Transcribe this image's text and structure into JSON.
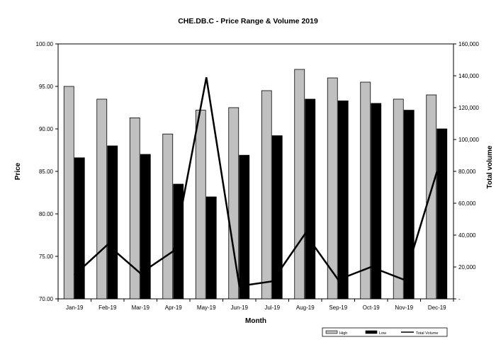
{
  "chart_data": {
    "type": "bar",
    "title": "CHE.DB.C - Price Range & Volume 2019",
    "xlabel": "Month",
    "ylabel": "Price",
    "y2label": "Total volume",
    "categories": [
      "Jan-19",
      "Feb-19",
      "Mar-19",
      "Apr-19",
      "May-19",
      "Jun-19",
      "Jul-19",
      "Aug-19",
      "Sep-19",
      "Oct-19",
      "Nov-19",
      "Dec-19"
    ],
    "ylim": [
      70,
      100
    ],
    "y_ticks": [
      "70.00",
      "75.00",
      "80.00",
      "85.00",
      "90.00",
      "95.00",
      "100.00"
    ],
    "y2lim": [
      0,
      160000
    ],
    "y2_ticks": [
      "-",
      "20,000",
      "40,000",
      "60,000",
      "80,000",
      "100,000",
      "120,000",
      "140,000",
      "160,000"
    ],
    "series": [
      {
        "name": "High",
        "kind": "bar",
        "color": "#c0c0c0",
        "values": [
          95.0,
          93.5,
          91.3,
          89.4,
          92.2,
          92.5,
          94.5,
          97.0,
          96.0,
          95.5,
          93.5,
          94.0
        ]
      },
      {
        "name": "Low",
        "kind": "bar",
        "color": "#000000",
        "values": [
          86.6,
          88.0,
          87.0,
          83.5,
          82.0,
          86.9,
          89.2,
          93.5,
          93.3,
          93.0,
          92.2,
          90.0
        ]
      },
      {
        "name": "Total Volume",
        "kind": "line",
        "axis": "secondary",
        "color": "#000000",
        "values": [
          15000,
          34000,
          16000,
          30000,
          139000,
          8000,
          11000,
          41000,
          12000,
          20000,
          12000,
          80000
        ]
      }
    ],
    "legend_position": "bottom-right",
    "grid": false
  }
}
